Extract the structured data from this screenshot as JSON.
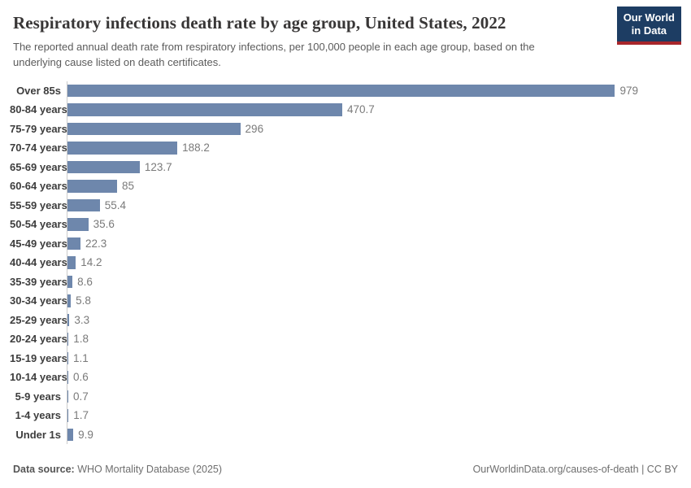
{
  "header": {
    "title": "Respiratory infections death rate by age group, United States, 2022",
    "subtitle_line1": "The reported annual death rate from respiratory infections, per 100,000 people in each age group, based on the",
    "subtitle_line2": "underlying cause listed on death certificates.",
    "logo": {
      "line1": "Our World",
      "line2": "in Data",
      "bg_color": "#1d3d63",
      "accent_color": "#a8262b"
    }
  },
  "chart_data": {
    "type": "bar",
    "orientation": "horizontal",
    "title": "Respiratory infections death rate by age group, United States, 2022",
    "xlabel": "",
    "ylabel": "",
    "xlim": [
      0,
      979
    ],
    "grid": false,
    "legend": "none",
    "bar_color": "#6e87ac",
    "axis_line_color": "#cbcbcb",
    "categories": [
      "Over 85s",
      "80-84 years",
      "75-79 years",
      "70-74 years",
      "65-69 years",
      "60-64 years",
      "55-59 years",
      "50-54 years",
      "45-49 years",
      "40-44 years",
      "35-39 years",
      "30-34 years",
      "25-29 years",
      "20-24 years",
      "15-19 years",
      "10-14 years",
      "5-9 years",
      "1-4 years",
      "Under 1s"
    ],
    "values": [
      979,
      470.7,
      296,
      188.2,
      123.7,
      85,
      55.4,
      35.6,
      22.3,
      14.2,
      8.6,
      5.8,
      3.3,
      1.8,
      1.1,
      0.6,
      0.7,
      1.7,
      9.9
    ],
    "value_labels": [
      "979",
      "470.7",
      "296",
      "188.2",
      "123.7",
      "85",
      "55.4",
      "35.6",
      "22.3",
      "14.2",
      "8.6",
      "5.8",
      "3.3",
      "1.8",
      "1.1",
      "0.6",
      "0.7",
      "1.7",
      "9.9"
    ]
  },
  "footer": {
    "source_label": "Data source:",
    "source_value": " WHO Mortality Database (2025)",
    "license_text": "OurWorldinData.org/causes-of-death | CC BY"
  }
}
